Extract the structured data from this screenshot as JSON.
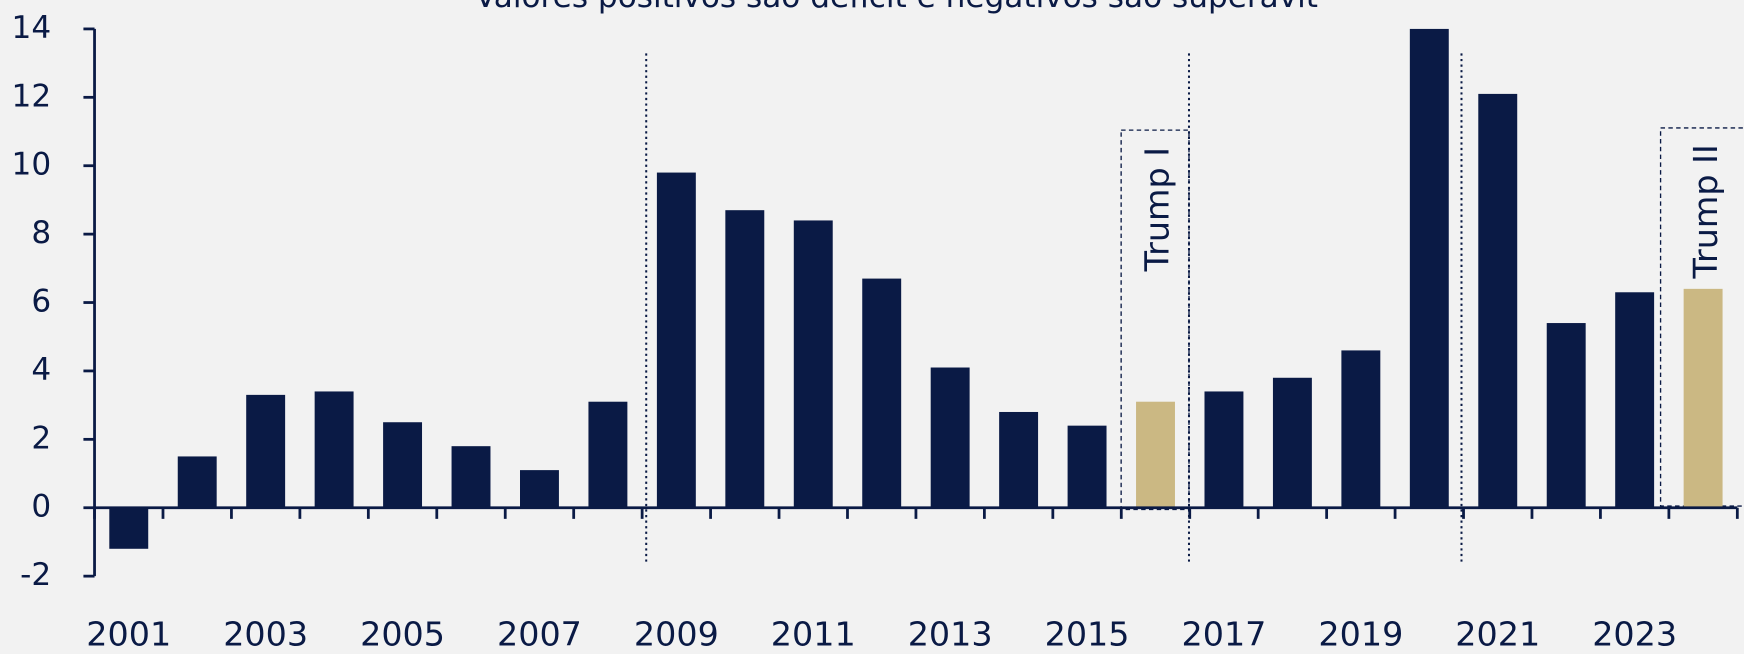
{
  "chart_data": {
    "type": "bar",
    "subtitle": "Valores positivos são déficit e negativos são superávit",
    "categories": [
      "2001",
      null,
      "2003",
      null,
      "2005",
      null,
      "2007",
      null,
      "2009",
      null,
      "2011",
      null,
      "2013",
      null,
      "2015",
      null,
      "2017",
      null,
      "2019",
      null,
      "2021",
      null,
      "2023",
      null
    ],
    "values": [
      -1.2,
      1.5,
      3.3,
      3.4,
      2.5,
      1.8,
      1.1,
      3.1,
      9.8,
      8.7,
      8.4,
      6.7,
      4.1,
      2.8,
      2.4,
      3.1,
      3.4,
      3.8,
      4.6,
      14.0,
      12.1,
      5.4,
      6.3,
      6.4
    ],
    "colors": [
      "#0a1a45",
      "#0a1a45",
      "#0a1a45",
      "#0a1a45",
      "#0a1a45",
      "#0a1a45",
      "#0a1a45",
      "#0a1a45",
      "#0a1a45",
      "#0a1a45",
      "#0a1a45",
      "#0a1a45",
      "#0a1a45",
      "#0a1a45",
      "#0a1a45",
      "#cbb883",
      "#0a1a45",
      "#0a1a45",
      "#0a1a45",
      "#0a1a45",
      "#0a1a45",
      "#0a1a45",
      "#0a1a45",
      "#cbb883"
    ],
    "ylim": [
      -2,
      14
    ],
    "yticks": [
      -2,
      0,
      2,
      4,
      6,
      8,
      10,
      12,
      14
    ],
    "annotations": [
      "Trump I",
      "Trump II"
    ]
  }
}
